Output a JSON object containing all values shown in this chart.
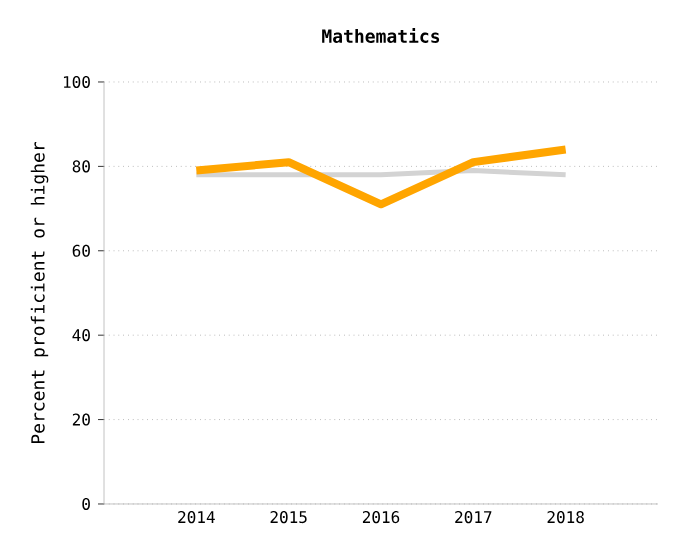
{
  "chart_data": {
    "type": "line",
    "title": "Mathematics",
    "ylabel": "Percent proficient or higher",
    "categories": [
      "2014",
      "2015",
      "2016",
      "2017",
      "2018"
    ],
    "series": [
      {
        "color": "#d3d3d3",
        "values": [
          78,
          78,
          78,
          79,
          78
        ]
      },
      {
        "color": "#ffa500",
        "values": [
          79,
          81,
          71,
          81,
          84
        ]
      }
    ],
    "ylim": [
      0,
      100
    ],
    "yticks": [
      0,
      20,
      40,
      60,
      80,
      100
    ],
    "grid": "y",
    "marker": "none",
    "line_style": "solid"
  }
}
